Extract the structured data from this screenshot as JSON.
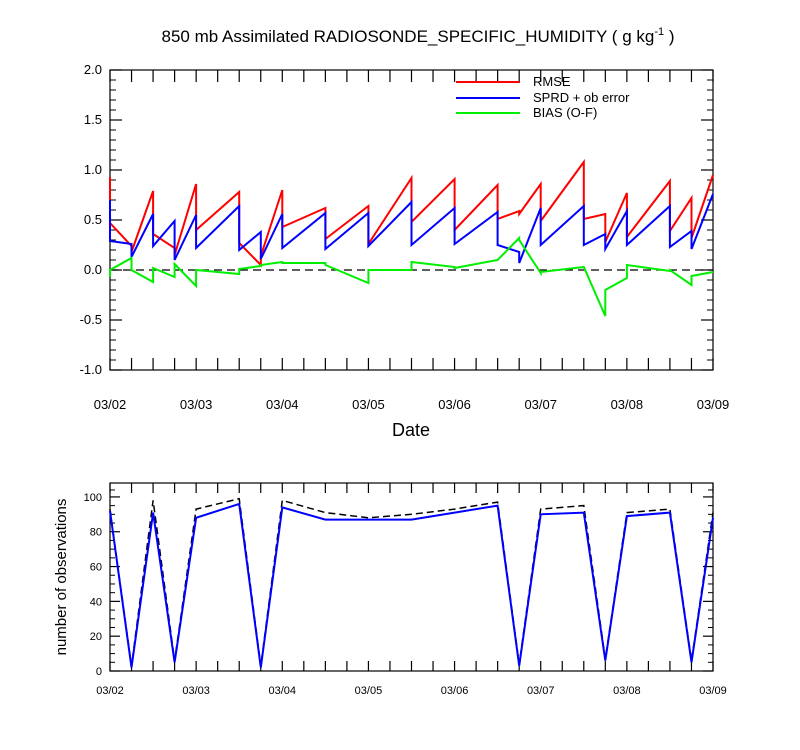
{
  "chart_data": [
    {
      "type": "line",
      "title": "850 mb Assimilated RADIOSONDE_SPECIFIC_HUMIDITY ( g kg",
      "title_sup": "-1",
      "title_end": " )",
      "xlabel": "Date",
      "ylabel": "",
      "xlim": [
        0,
        7
      ],
      "ylim": [
        -1.0,
        2.0
      ],
      "yticks": [
        "-1.0",
        "-0.5",
        "0.0",
        "0.5",
        "1.0",
        "1.5",
        "2.0"
      ],
      "ytick_values": [
        -1.0,
        -0.5,
        0.0,
        0.5,
        1.0,
        1.5,
        2.0
      ],
      "xtick_labels": [
        "03/02",
        "03/03",
        "03/04",
        "03/05",
        "03/06",
        "03/07",
        "03/08",
        "03/09"
      ],
      "xtick_values": [
        0,
        1,
        2,
        3,
        4,
        5,
        6,
        7
      ],
      "zero_line": 0,
      "legend_position": "top-right",
      "series": [
        {
          "name": "RMSE",
          "color": "#ff0000",
          "x": [
            0,
            0,
            0.25,
            0.25,
            0.5,
            0.5,
            0.75,
            0.75,
            1.0,
            1.0,
            1.5,
            1.5,
            1.75,
            1.75,
            2.0,
            2.0,
            2.5,
            2.5,
            3.0,
            3.0,
            3.5,
            3.5,
            4.0,
            4.0,
            4.5,
            4.5,
            4.75,
            4.75,
            5.0,
            5.0,
            5.5,
            5.5,
            5.75,
            5.75,
            6.0,
            6.0,
            6.5,
            6.5,
            6.75,
            6.75,
            7.0
          ],
          "y": [
            0.93,
            0.47,
            0.24,
            0.18,
            0.79,
            0.36,
            0.22,
            0.15,
            0.86,
            0.4,
            0.78,
            0.27,
            0.05,
            0.14,
            0.8,
            0.43,
            0.62,
            0.31,
            0.64,
            0.26,
            0.92,
            0.48,
            0.91,
            0.4,
            0.85,
            0.51,
            0.59,
            0.56,
            0.86,
            0.49,
            1.08,
            0.51,
            0.56,
            0.28,
            0.77,
            0.33,
            0.89,
            0.39,
            0.72,
            0.32,
            0.95
          ]
        },
        {
          "name": "SPRD + ob error",
          "color": "#0000ff",
          "x": [
            0,
            0,
            0.25,
            0.25,
            0.5,
            0.5,
            0.75,
            0.75,
            1.0,
            1.0,
            1.5,
            1.5,
            1.75,
            1.75,
            2.0,
            2.0,
            2.5,
            2.5,
            3.0,
            3.0,
            3.5,
            3.5,
            4.0,
            4.0,
            4.5,
            4.5,
            4.75,
            4.75,
            5.0,
            5.0,
            5.5,
            5.5,
            5.75,
            5.75,
            6.0,
            6.0,
            6.5,
            6.5,
            6.75,
            6.75,
            7.0
          ],
          "y": [
            0.7,
            0.29,
            0.26,
            0.13,
            0.56,
            0.24,
            0.49,
            0.1,
            0.55,
            0.22,
            0.64,
            0.2,
            0.38,
            0.11,
            0.56,
            0.22,
            0.57,
            0.21,
            0.57,
            0.24,
            0.68,
            0.25,
            0.62,
            0.26,
            0.58,
            0.25,
            0.18,
            0.07,
            0.62,
            0.25,
            0.64,
            0.25,
            0.36,
            0.21,
            0.59,
            0.25,
            0.64,
            0.23,
            0.39,
            0.21,
            0.76
          ]
        },
        {
          "name": "BIAS (O-F)",
          "color": "#00ee00",
          "x": [
            0,
            0,
            0.25,
            0.25,
            0.5,
            0.5,
            0.75,
            0.75,
            1.0,
            1.0,
            1.5,
            1.5,
            1.75,
            1.75,
            2.0,
            2.0,
            2.5,
            2.5,
            3.0,
            3.0,
            3.5,
            3.5,
            4.0,
            4.0,
            4.5,
            4.5,
            4.75,
            4.75,
            5.0,
            5.0,
            5.5,
            5.5,
            5.75,
            5.75,
            6.0,
            6.0,
            6.5,
            6.5,
            6.75,
            6.75,
            7.0
          ],
          "y": [
            -0.07,
            0.0,
            0.12,
            0.0,
            -0.12,
            0.02,
            -0.07,
            0.06,
            -0.16,
            0.0,
            -0.04,
            0.01,
            0.04,
            0.05,
            0.08,
            0.07,
            0.07,
            0.05,
            -0.13,
            0.0,
            0.0,
            0.08,
            0.03,
            0.02,
            0.1,
            0.1,
            0.32,
            0.3,
            -0.03,
            -0.02,
            0.03,
            0.03,
            -0.46,
            -0.2,
            -0.08,
            0.05,
            -0.01,
            0.0,
            -0.15,
            -0.06,
            -0.02
          ]
        }
      ]
    },
    {
      "type": "line",
      "title": "",
      "xlabel": "",
      "ylabel": "number of observations",
      "xlim": [
        0,
        7
      ],
      "ylim": [
        0,
        108
      ],
      "yticks": [
        "0",
        "20",
        "40",
        "60",
        "80",
        "100"
      ],
      "ytick_values": [
        0,
        20,
        40,
        60,
        80,
        100
      ],
      "xtick_labels": [
        "03/02",
        "03/03",
        "03/04",
        "03/05",
        "03/06",
        "03/07",
        "03/08",
        "03/09"
      ],
      "xtick_values": [
        0,
        1,
        2,
        3,
        4,
        5,
        6,
        7
      ],
      "series": [
        {
          "color": "#000000",
          "style": "dashed",
          "x": [
            0,
            0.25,
            0.5,
            0.75,
            1.0,
            1.5,
            1.75,
            2.0,
            2.5,
            3.0,
            3.5,
            4.0,
            4.5,
            4.75,
            5.0,
            5.5,
            5.75,
            6.0,
            6.5,
            6.75,
            7.0
          ],
          "y": [
            93,
            3,
            98,
            6,
            93,
            99,
            3,
            98,
            91,
            88,
            90,
            93,
            97,
            4,
            93,
            95,
            7,
            91,
            93,
            6,
            91
          ]
        },
        {
          "color": "#0000ff",
          "style": "solid",
          "x": [
            0,
            0.25,
            0.5,
            0.75,
            1.0,
            1.5,
            1.75,
            2.0,
            2.5,
            3.0,
            3.5,
            4.0,
            4.5,
            4.75,
            5.0,
            5.5,
            5.75,
            6.0,
            6.5,
            6.75,
            7.0
          ],
          "y": [
            92,
            2,
            91,
            5,
            88,
            96,
            2,
            94,
            87,
            87,
            87,
            91,
            95,
            3,
            90,
            91,
            6,
            89,
            91,
            5,
            88
          ]
        }
      ]
    }
  ]
}
